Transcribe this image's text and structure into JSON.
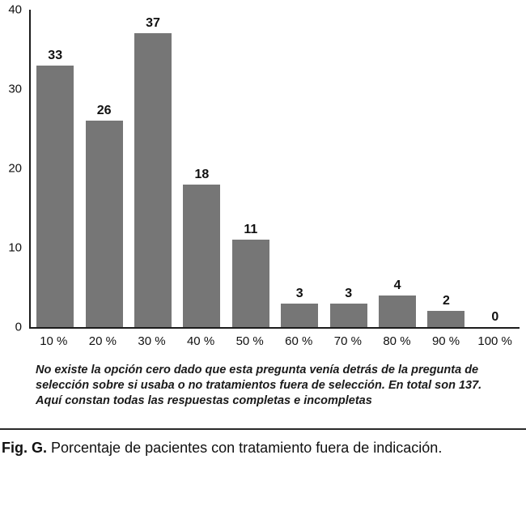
{
  "chart_data": {
    "type": "bar",
    "categories": [
      "10 %",
      "20 %",
      "30 %",
      "40 %",
      "50 %",
      "60 %",
      "70 %",
      "80 %",
      "90 %",
      "100 %"
    ],
    "values": [
      33,
      26,
      37,
      18,
      11,
      3,
      3,
      4,
      2,
      0
    ],
    "title": "",
    "xlabel": "",
    "ylabel": "",
    "ylim": [
      0,
      40
    ],
    "yticks": [
      0,
      10,
      20,
      30,
      40
    ],
    "bar_color": "#767676",
    "grid": false,
    "legend_position": "none",
    "data_labels": true
  },
  "note": "No existe la opción cero dado que esta pregunta venía detrás de la pregunta de selección sobre si usaba o no tratamientos fuera de selección. En total son 137. Aquí constan todas las respuestas completas e incompletas",
  "caption": {
    "label": "Fig. G.",
    "text": "Porcentaje de pacientes con tratamiento fuera de indicación."
  }
}
